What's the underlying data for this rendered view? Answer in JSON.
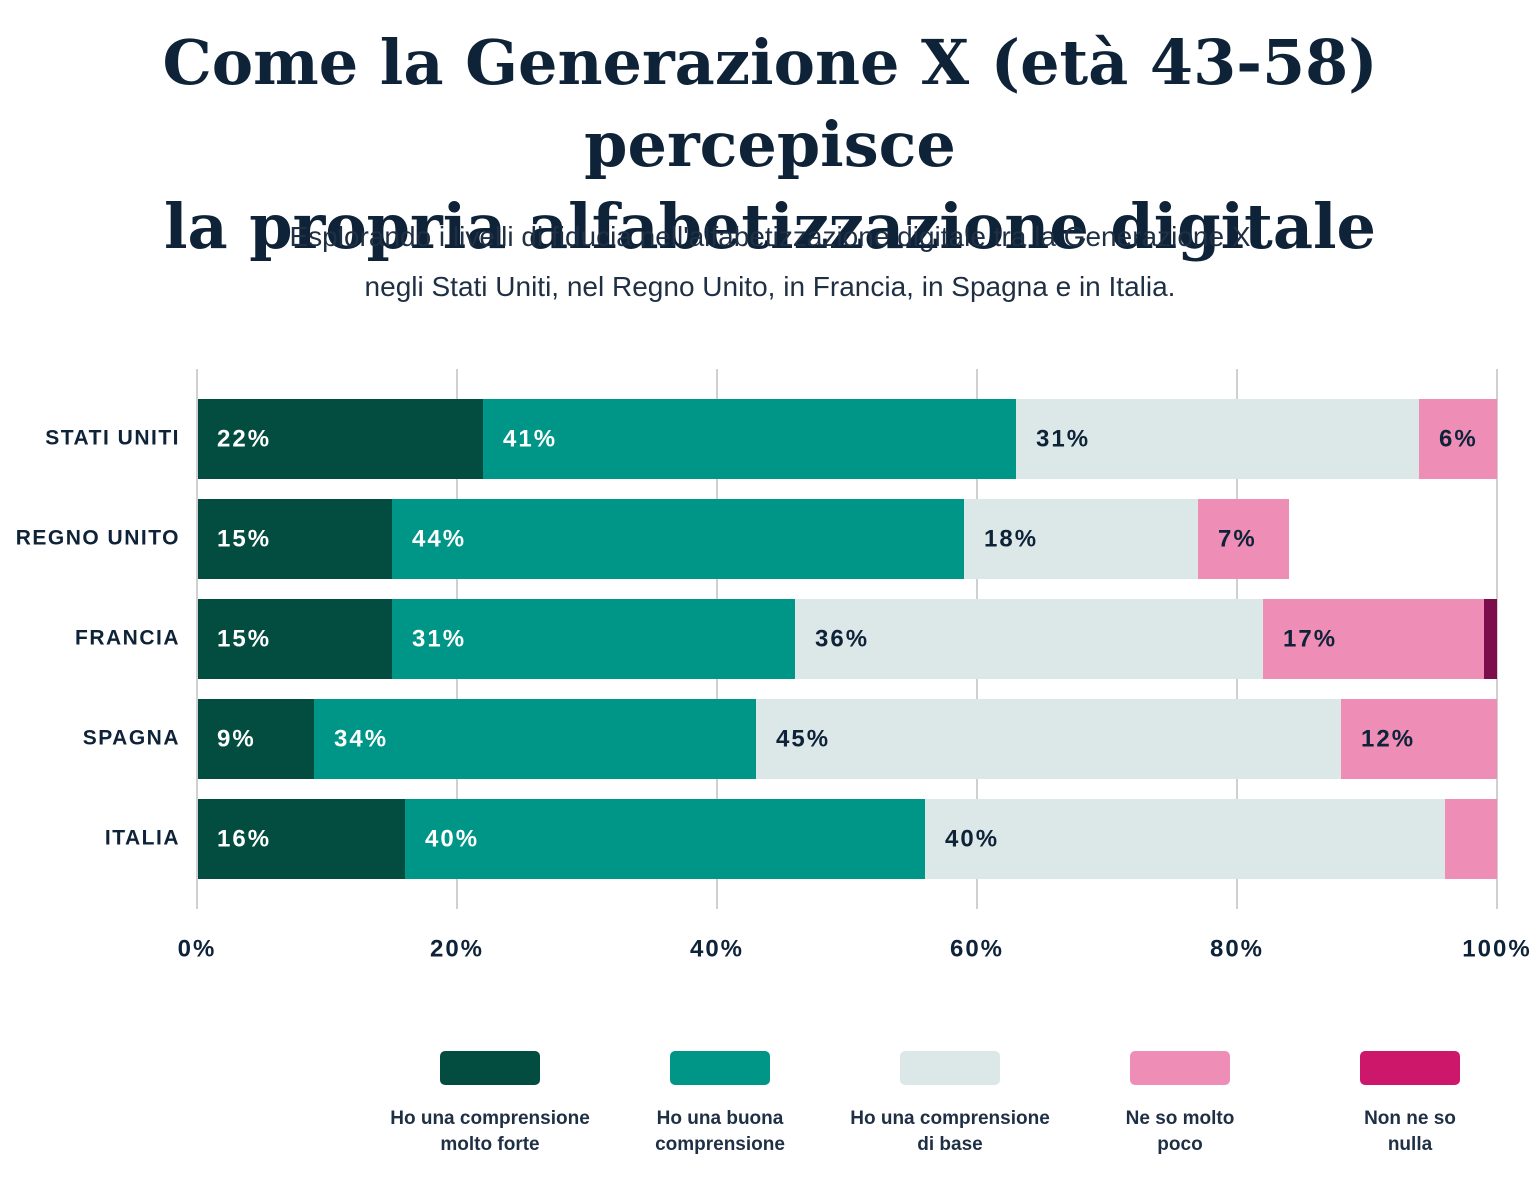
{
  "chart_data": {
    "type": "stacked-barh",
    "title": "Come la Generazione X (età 43-58) percepisce\nla propria alfabetizzazione digitale",
    "subtitle": "Esplorando i livelli di fiducia nell'alfabetizzazione digitale tra la Generazione X\nnegli Stati Uniti, nel Regno Unito, in Francia, in Spagna e in Italia.",
    "categories": [
      "STATI UNITI",
      "REGNO UNITO",
      "FRANCIA",
      "SPAGNA",
      "ITALIA"
    ],
    "series": [
      {
        "name": "Ho una comprensione\nmolto forte",
        "color": "#034d40",
        "values": [
          22,
          15,
          15,
          9,
          16
        ],
        "value_labels": [
          "22%",
          "15%",
          "15%",
          "9%",
          "16%"
        ]
      },
      {
        "name": "Ho una buona\ncomprensione",
        "color": "#009687",
        "values": [
          41,
          44,
          31,
          34,
          40
        ],
        "value_labels": [
          "41%",
          "44%",
          "31%",
          "34%",
          "40%"
        ]
      },
      {
        "name": "Ho una comprensione\ndi base",
        "color": "#dce8e7",
        "values": [
          31,
          18,
          36,
          45,
          40
        ],
        "value_labels": [
          "31%",
          "18%",
          "36%",
          "45%",
          "40%"
        ]
      },
      {
        "name": "Ne so molto\npoco",
        "color": "#ee8db6",
        "values": [
          6,
          7,
          17,
          12,
          4
        ],
        "value_labels": [
          "6%",
          "7%",
          "17%",
          "12%",
          null
        ]
      },
      {
        "name": "Non ne so\nnulla",
        "color": "#cc176b",
        "values": [
          null,
          null,
          1,
          null,
          null
        ],
        "value_labels": [
          null,
          null,
          null,
          null,
          null
        ]
      }
    ],
    "xlim": [
      0,
      100
    ],
    "xticks": [
      {
        "value": 0,
        "label": "0%"
      },
      {
        "value": 20,
        "label": "20%"
      },
      {
        "value": 40,
        "label": "40%"
      },
      {
        "value": 60,
        "label": "60%"
      },
      {
        "value": 80,
        "label": "80%"
      },
      {
        "value": 100,
        "label": "100%"
      }
    ],
    "grid": true
  }
}
